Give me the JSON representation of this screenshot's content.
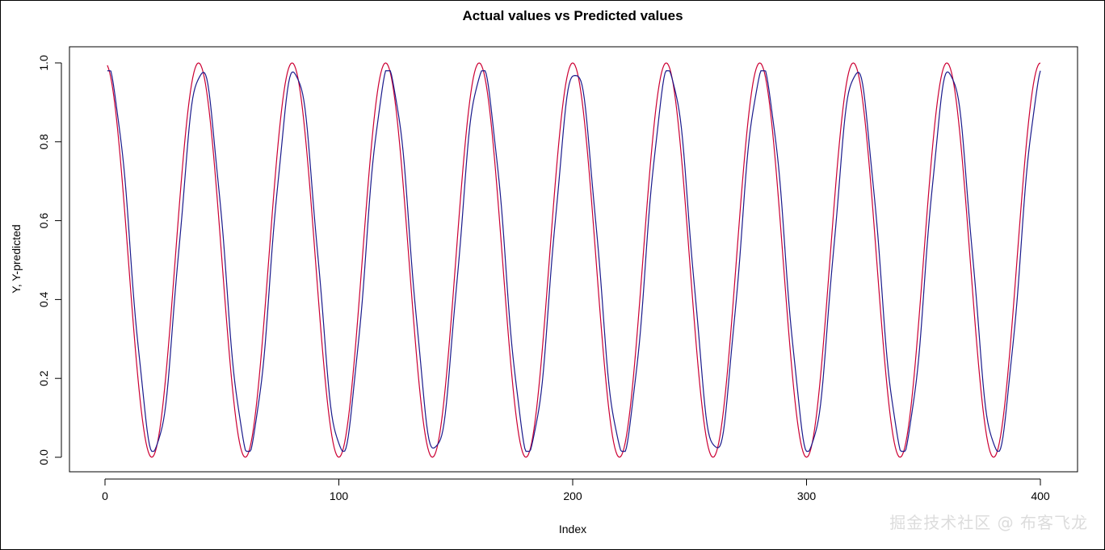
{
  "watermark": "掘金技术社区 @ 布客飞龙",
  "chart_data": {
    "type": "line",
    "title": "Actual values vs Predicted values",
    "xlabel": "Index",
    "ylabel": "Y, Y-predicted",
    "xlim": [
      0,
      400
    ],
    "ylim": [
      0.0,
      1.0
    ],
    "xticks": [
      "0",
      "100",
      "200",
      "300",
      "400"
    ],
    "yticks": [
      "0.0",
      "0.2",
      "0.4",
      "0.6",
      "0.8",
      "1.0"
    ],
    "grid": false,
    "legend": "none",
    "period": 40,
    "series": [
      {
        "role": "actual",
        "color": "#cc0033",
        "x_start": 1,
        "x_end": 400,
        "peak": 1.0,
        "trough": 0.0
      },
      {
        "role": "predicted",
        "color": "#1a1a8c",
        "x_start": 1,
        "x_end": 400,
        "peak": 0.98,
        "trough": 0.015
      }
    ]
  }
}
